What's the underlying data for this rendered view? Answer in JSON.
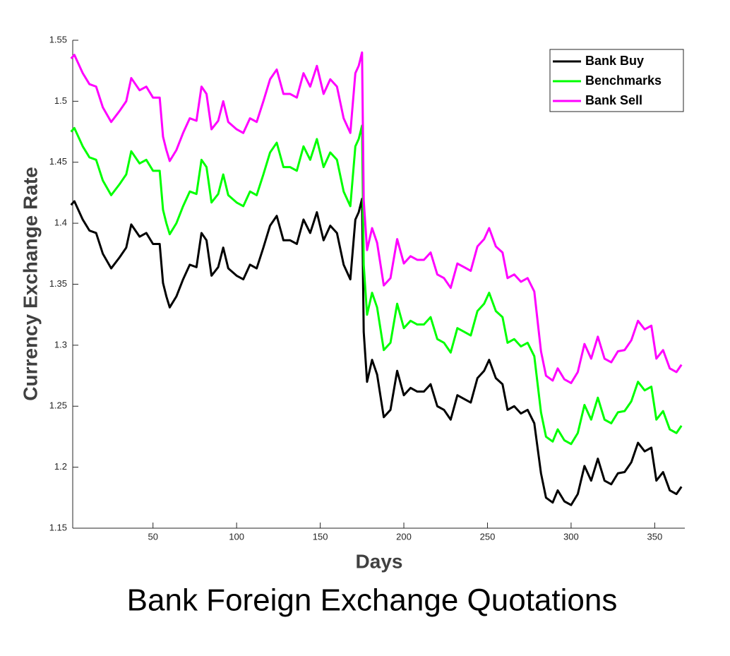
{
  "chart_data": {
    "type": "line",
    "title": "Bank Foreign Exchange Quotations",
    "x_label": "Days",
    "y_label": "Currency Exchange Rate",
    "x": [
      1,
      3,
      8,
      12,
      16,
      20,
      25,
      30,
      34,
      37,
      42,
      46,
      50,
      54,
      56,
      58,
      60,
      64,
      68,
      72,
      76,
      79,
      82,
      85,
      89,
      92,
      95,
      100,
      104,
      108,
      112,
      116,
      120,
      124,
      128,
      132,
      136,
      140,
      144,
      148,
      152,
      156,
      160,
      164,
      168,
      171,
      173,
      175,
      176,
      178,
      181,
      184,
      188,
      192,
      196,
      200,
      204,
      208,
      212,
      216,
      220,
      224,
      228,
      232,
      236,
      240,
      244,
      248,
      251,
      255,
      259,
      262,
      266,
      270,
      274,
      278,
      282,
      285,
      289,
      292,
      296,
      300,
      304,
      308,
      312,
      316,
      320,
      324,
      328,
      332,
      336,
      340,
      344,
      348,
      351,
      355,
      359,
      363,
      366
    ],
    "series": [
      {
        "name": "Bank Buy",
        "color": "#000000",
        "values": [
          1.415,
          1.418,
          1.403,
          1.394,
          1.392,
          1.375,
          1.363,
          1.372,
          1.38,
          1.399,
          1.389,
          1.392,
          1.383,
          1.383,
          1.351,
          1.34,
          1.331,
          1.34,
          1.354,
          1.366,
          1.364,
          1.392,
          1.386,
          1.357,
          1.364,
          1.38,
          1.363,
          1.357,
          1.354,
          1.366,
          1.363,
          1.38,
          1.398,
          1.406,
          1.386,
          1.386,
          1.383,
          1.403,
          1.392,
          1.409,
          1.386,
          1.398,
          1.392,
          1.366,
          1.354,
          1.403,
          1.409,
          1.42,
          1.311,
          1.27,
          1.288,
          1.276,
          1.241,
          1.247,
          1.279,
          1.259,
          1.265,
          1.262,
          1.262,
          1.268,
          1.25,
          1.247,
          1.239,
          1.259,
          1.256,
          1.253,
          1.273,
          1.279,
          1.288,
          1.273,
          1.268,
          1.247,
          1.25,
          1.244,
          1.247,
          1.236,
          1.195,
          1.175,
          1.171,
          1.181,
          1.172,
          1.169,
          1.178,
          1.201,
          1.189,
          1.207,
          1.189,
          1.186,
          1.195,
          1.196,
          1.204,
          1.22,
          1.213,
          1.216,
          1.189,
          1.196,
          1.181,
          1.178,
          1.184
        ]
      },
      {
        "name": "Benchmarks",
        "color": "#00ff00",
        "values": [
          1.475,
          1.478,
          1.463,
          1.454,
          1.452,
          1.435,
          1.423,
          1.432,
          1.44,
          1.459,
          1.449,
          1.452,
          1.443,
          1.443,
          1.411,
          1.4,
          1.391,
          1.4,
          1.414,
          1.426,
          1.424,
          1.452,
          1.446,
          1.417,
          1.424,
          1.44,
          1.423,
          1.417,
          1.414,
          1.426,
          1.423,
          1.44,
          1.458,
          1.466,
          1.446,
          1.446,
          1.443,
          1.463,
          1.452,
          1.469,
          1.446,
          1.458,
          1.452,
          1.426,
          1.414,
          1.463,
          1.469,
          1.48,
          1.366,
          1.325,
          1.343,
          1.331,
          1.296,
          1.302,
          1.334,
          1.314,
          1.32,
          1.317,
          1.317,
          1.323,
          1.305,
          1.302,
          1.294,
          1.314,
          1.311,
          1.308,
          1.328,
          1.334,
          1.343,
          1.328,
          1.323,
          1.302,
          1.305,
          1.299,
          1.302,
          1.291,
          1.245,
          1.225,
          1.221,
          1.231,
          1.222,
          1.219,
          1.228,
          1.251,
          1.239,
          1.257,
          1.239,
          1.236,
          1.245,
          1.246,
          1.254,
          1.27,
          1.263,
          1.266,
          1.239,
          1.246,
          1.231,
          1.228,
          1.234
        ]
      },
      {
        "name": "Bank Sell",
        "color": "#ff00ff",
        "values": [
          1.535,
          1.538,
          1.523,
          1.514,
          1.512,
          1.495,
          1.483,
          1.492,
          1.5,
          1.519,
          1.509,
          1.512,
          1.503,
          1.503,
          1.471,
          1.46,
          1.451,
          1.46,
          1.474,
          1.486,
          1.484,
          1.512,
          1.506,
          1.477,
          1.484,
          1.5,
          1.483,
          1.477,
          1.474,
          1.486,
          1.483,
          1.5,
          1.518,
          1.526,
          1.506,
          1.506,
          1.503,
          1.523,
          1.512,
          1.529,
          1.506,
          1.518,
          1.512,
          1.486,
          1.474,
          1.523,
          1.529,
          1.54,
          1.419,
          1.378,
          1.396,
          1.384,
          1.349,
          1.355,
          1.387,
          1.367,
          1.373,
          1.37,
          1.37,
          1.376,
          1.358,
          1.355,
          1.347,
          1.367,
          1.364,
          1.361,
          1.381,
          1.387,
          1.396,
          1.381,
          1.376,
          1.355,
          1.358,
          1.352,
          1.355,
          1.344,
          1.295,
          1.275,
          1.271,
          1.281,
          1.272,
          1.269,
          1.278,
          1.301,
          1.289,
          1.307,
          1.289,
          1.286,
          1.295,
          1.296,
          1.304,
          1.32,
          1.313,
          1.316,
          1.289,
          1.296,
          1.281,
          1.278,
          1.284
        ]
      }
    ],
    "xlim": [
      2,
      368
    ],
    "xticks": [
      50,
      100,
      150,
      200,
      250,
      300,
      350
    ],
    "ylim": [
      1.15,
      1.55
    ],
    "yticks": [
      1.15,
      1.2,
      1.25,
      1.3,
      1.35,
      1.4,
      1.45,
      1.5,
      1.55
    ],
    "grid": false,
    "legend": "northeast"
  }
}
